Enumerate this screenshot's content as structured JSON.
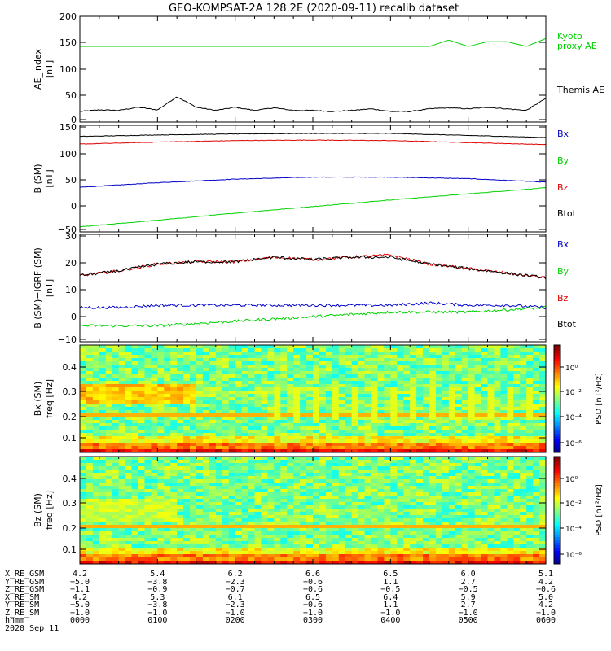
{
  "title": "GEO-KOMPSAT-2A 128.2E (2020-09-11) recalib dataset",
  "colors": {
    "black": "#000000",
    "red": "#e00000",
    "blue": "#0000c8",
    "green": "#00d200"
  },
  "panels": [
    {
      "ylabel": [
        "AE_index",
        "[nT]"
      ],
      "yticks": [
        "200",
        "150",
        "100",
        "50",
        "0"
      ],
      "legend": [
        {
          "text": "Kyoto",
          "color": "green"
        },
        {
          "text": "proxy AE",
          "color": "green"
        },
        {
          "text": "Themis AE",
          "color": "black"
        }
      ]
    },
    {
      "ylabel": [
        "B (SM)",
        "[nT]"
      ],
      "yticks": [
        "150",
        "100",
        "50",
        "0",
        "−50"
      ],
      "legend": [
        {
          "text": "Bx",
          "color": "blue"
        },
        {
          "text": "By",
          "color": "green"
        },
        {
          "text": "Bz",
          "color": "red"
        },
        {
          "text": "Btot",
          "color": "black"
        }
      ]
    },
    {
      "ylabel": [
        "B (SM)−IGRF (SM)",
        "[nT]"
      ],
      "yticks": [
        "30",
        "20",
        "10",
        "0",
        "−10"
      ],
      "legend": [
        {
          "text": "Bx",
          "color": "blue"
        },
        {
          "text": "By",
          "color": "green"
        },
        {
          "text": "Bz",
          "color": "red"
        },
        {
          "text": "Btot",
          "color": "black"
        }
      ]
    },
    {
      "ylabel": [
        "Bx (SM)",
        "freq [Hz]"
      ],
      "yticks": [
        "0.4",
        "0.3",
        "0.2",
        "0.1"
      ],
      "cbar_label": "PSD [nT²/Hz]",
      "cbar_ticks": [
        "10⁰",
        "10⁻²",
        "10⁻⁴",
        "10⁻⁶"
      ]
    },
    {
      "ylabel": [
        "Bz (SM)",
        "freq [Hz]"
      ],
      "yticks": [
        "0.4",
        "0.3",
        "0.2",
        "0.1"
      ],
      "cbar_label": "PSD [nT²/Hz]",
      "cbar_ticks": [
        "10⁰",
        "10⁻²",
        "10⁻⁴",
        "10⁻⁶"
      ]
    }
  ],
  "chart_data": [
    {
      "type": "line",
      "ylabel": "AE_index [nT]",
      "ylim": [
        0,
        200
      ],
      "x_hours": [
        0,
        0.25,
        0.5,
        0.75,
        1.0,
        1.25,
        1.5,
        1.75,
        2.0,
        2.25,
        2.5,
        2.75,
        3.0,
        3.25,
        3.5,
        3.75,
        4.0,
        4.25,
        4.5,
        4.75,
        5.0,
        5.25,
        5.5,
        5.75,
        6.0
      ],
      "series": [
        {
          "name": "Kyoto proxy AE",
          "color": "green",
          "values": [
            143,
            143,
            143,
            143,
            143,
            143,
            143,
            143,
            143,
            143,
            143,
            143,
            143,
            143,
            143,
            143,
            143,
            143,
            143,
            155,
            143,
            152,
            152,
            143,
            158
          ]
        },
        {
          "name": "Themis AE",
          "color": "black",
          "values": [
            20,
            23,
            22,
            28,
            23,
            48,
            28,
            22,
            28,
            22,
            27,
            22,
            22,
            20,
            22,
            25,
            20,
            20,
            25,
            27,
            25,
            28,
            25,
            22,
            45
          ]
        }
      ]
    },
    {
      "type": "line",
      "ylabel": "B (SM) [nT]",
      "ylim": [
        -55,
        155
      ],
      "x_hours": [
        0,
        1,
        2,
        3,
        4,
        5,
        6
      ],
      "series": [
        {
          "name": "Bx",
          "color": "blue",
          "values": [
            33,
            42,
            49,
            53,
            53,
            50,
            43
          ]
        },
        {
          "name": "By",
          "color": "green",
          "values": [
            -45,
            -32,
            -18,
            -5,
            8,
            20,
            32
          ]
        },
        {
          "name": "Bz",
          "color": "red",
          "values": [
            118,
            122,
            125,
            126,
            125,
            121,
            117
          ]
        },
        {
          "name": "Btot",
          "color": "black",
          "values": [
            133,
            136,
            138,
            139,
            139,
            135,
            131
          ]
        }
      ]
    },
    {
      "type": "line",
      "ylabel": "B (SM)-IGRF (SM) [nT]",
      "ylim": [
        -12,
        35
      ],
      "x_hours": [
        0,
        0.5,
        1,
        1.5,
        2,
        2.5,
        3,
        3.5,
        4,
        4.5,
        5,
        5.5,
        6
      ],
      "series": [
        {
          "name": "Bx",
          "color": "blue",
          "values": [
            3,
            3,
            4,
            4,
            4,
            4,
            4,
            4,
            4,
            5,
            4,
            4,
            3
          ]
        },
        {
          "name": "By",
          "color": "green",
          "values": [
            -5,
            -5,
            -5,
            -4,
            -3,
            -2,
            -1,
            0,
            1,
            1,
            1,
            2,
            3
          ]
        },
        {
          "name": "Bz",
          "color": "red",
          "values": [
            17,
            19,
            22,
            23,
            23,
            25,
            24,
            25,
            26,
            22,
            20,
            18,
            16
          ]
        },
        {
          "name": "Btot",
          "color": "black",
          "values": [
            17,
            19,
            22,
            23,
            23,
            25,
            24,
            25,
            25,
            22,
            20,
            18,
            16
          ]
        }
      ]
    },
    {
      "type": "heatmap",
      "name": "Bx (SM)",
      "ylabel": "freq [Hz]",
      "ylim": [
        0,
        0.5
      ]
    },
    {
      "type": "heatmap",
      "name": "Bz (SM)",
      "ylabel": "freq [Hz]",
      "ylim": [
        0,
        0.5
      ]
    }
  ],
  "orbit_table": {
    "labels": [
      "X_RE_GSM",
      "Y_RE_GSM",
      "Z_RE_GSM",
      "X_RE_SM",
      "Y_RE_SM",
      "Z_RE_SM",
      "hhmm"
    ],
    "columns": [
      [
        "4.2",
        "−5.0",
        "−1.1",
        "4.2",
        "−5.0",
        "−1.0",
        "0000"
      ],
      [
        "5.4",
        "−3.8",
        "−0.9",
        "5.3",
        "−3.8",
        "−1.0",
        "0100"
      ],
      [
        "6.2",
        "−2.3",
        "−0.7",
        "6.1",
        "−2.3",
        "−1.0",
        "0200"
      ],
      [
        "6.6",
        "−0.6",
        "−0.6",
        "6.5",
        "−0.6",
        "−1.0",
        "0300"
      ],
      [
        "6.5",
        "1.1",
        "−0.5",
        "6.4",
        "1.1",
        "−1.0",
        "0400"
      ],
      [
        "6.0",
        "2.7",
        "−0.5",
        "5.9",
        "2.7",
        "−1.0",
        "0500"
      ],
      [
        "5.1",
        "4.2",
        "−0.6",
        "5.0",
        "4.2",
        "−1.0",
        "0600"
      ]
    ],
    "date": "2020 Sep 11"
  }
}
